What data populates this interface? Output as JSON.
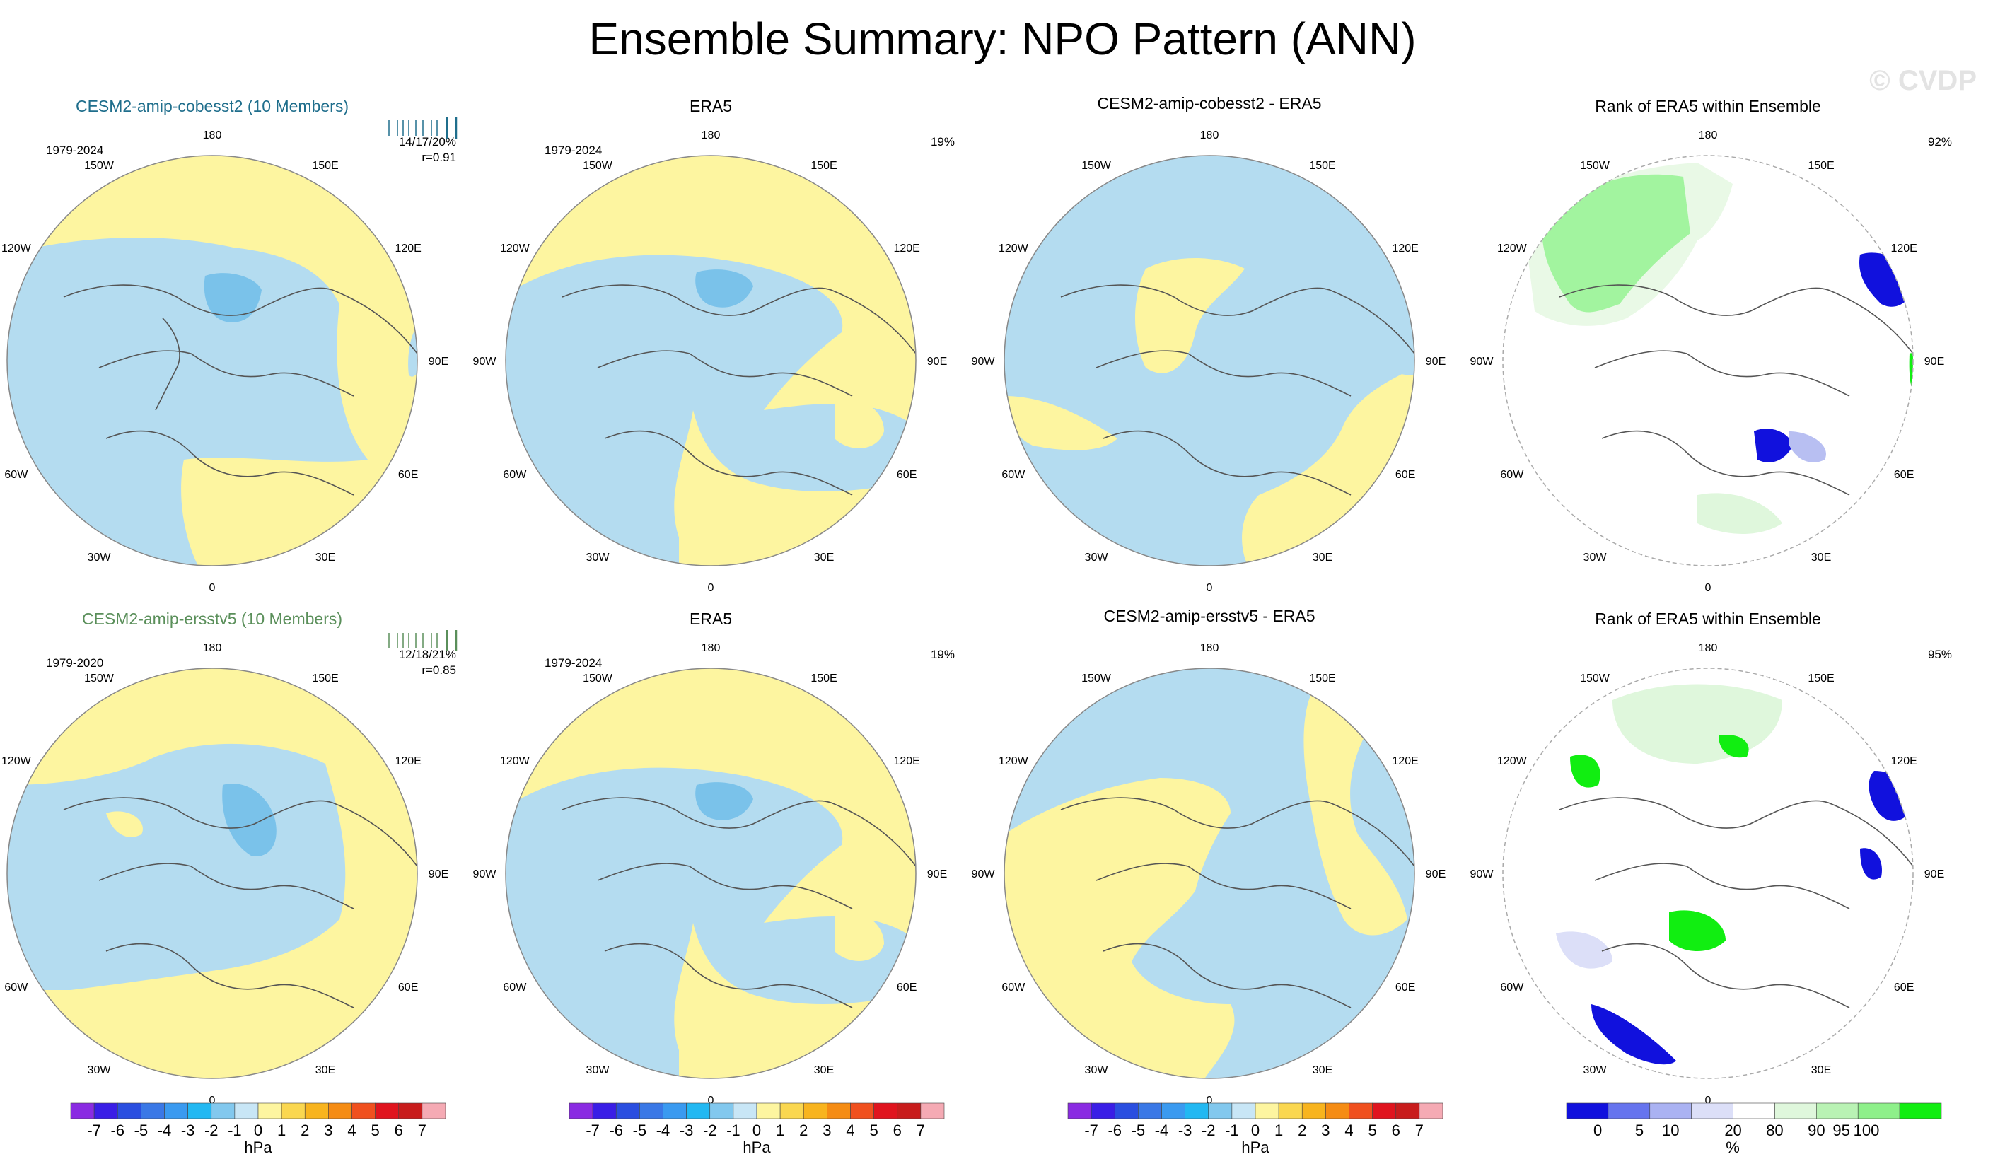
{
  "title": "Ensemble Summary: NPO Pattern (ANN)",
  "watermark": "© CVDP",
  "lon_labels": [
    "180",
    "150E",
    "120E",
    "90E",
    "60E",
    "30E",
    "0",
    "30W",
    "60W",
    "90W",
    "120W",
    "150W"
  ],
  "colors": {
    "positive": "#fdf5a0",
    "negative": "#b4dcf0",
    "strong_negative": "#7ac2ea",
    "coast": "#555555",
    "title_cobe": "#1f6e8c",
    "title_ersst": "#5a8f5a",
    "rank_low": "#1111dd",
    "rank_mid": "#b8bff2",
    "rank_high": "#c8f5c0",
    "rank_top": "#11ee11"
  },
  "rows": [
    {
      "model_title": "CESM2-amip-cobesst2 (10 Members)",
      "model_period": "1979-2024",
      "model_stats": "14/17/20%",
      "model_r": "r=0.91",
      "obs_title": "ERA5",
      "obs_period": "1979-2024",
      "obs_pct": "19%",
      "diff_title": "CESM2-amip-cobesst2 - ERA5",
      "rank_title": "Rank of ERA5 within Ensemble",
      "rank_pct": "92%"
    },
    {
      "model_title": "CESM2-amip-ersstv5 (10 Members)",
      "model_period": "1979-2020",
      "model_stats": "12/18/21%",
      "model_r": "r=0.85",
      "obs_title": "ERA5",
      "obs_period": "1979-2024",
      "obs_pct": "19%",
      "diff_title": "CESM2-amip-ersstv5 - ERA5",
      "rank_title": "Rank of ERA5 within Ensemble",
      "rank_pct": "95%"
    }
  ],
  "colorbar_hpa": {
    "unit": "hPa",
    "labels": [
      "-7",
      "-6",
      "-5",
      "-4",
      "-3",
      "-2",
      "-1",
      "0",
      "1",
      "2",
      "3",
      "4",
      "5",
      "6",
      "7"
    ],
    "colors": [
      "#8a2be2",
      "#3a1ee6",
      "#2a4ee0",
      "#3a78e6",
      "#3a9af0",
      "#22b8f2",
      "#82c8ee",
      "#c8e6f6",
      "#fdf5a0",
      "#fad750",
      "#f8b41e",
      "#f58c14",
      "#f0501e",
      "#e0141e",
      "#c81c1c",
      "#f5aab4"
    ]
  },
  "colorbar_pct": {
    "unit": "%",
    "labels": [
      "0",
      "5",
      "10",
      "20",
      "80",
      "90",
      "95",
      "100"
    ],
    "colors": [
      "#1111dd",
      "#6674ee",
      "#aab2f2",
      "#dcdff8",
      "#ffffff",
      "#dff7dc",
      "#b9f2b4",
      "#8ef08a",
      "#11ee11"
    ]
  },
  "chart_data": [
    {
      "type": "heatmap",
      "title": "CESM2-amip-cobesst2 (10 Members)",
      "period": "1979-2024",
      "stats": "14/17/20%",
      "r": 0.91,
      "projection": "north polar stereographic",
      "units": "hPa"
    },
    {
      "type": "heatmap",
      "title": "ERA5",
      "period": "1979-2024",
      "pct_variance": "19%",
      "units": "hPa"
    },
    {
      "type": "heatmap",
      "title": "CESM2-amip-cobesst2 - ERA5",
      "units": "hPa"
    },
    {
      "type": "heatmap",
      "title": "Rank of ERA5 within Ensemble",
      "pct": "92%",
      "units": "%"
    },
    {
      "type": "heatmap",
      "title": "CESM2-amip-ersstv5 (10 Members)",
      "period": "1979-2020",
      "stats": "12/18/21%",
      "r": 0.85,
      "units": "hPa"
    },
    {
      "type": "heatmap",
      "title": "ERA5",
      "period": "1979-2024",
      "pct_variance": "19%",
      "units": "hPa"
    },
    {
      "type": "heatmap",
      "title": "CESM2-amip-ersstv5 - ERA5",
      "units": "hPa"
    },
    {
      "type": "heatmap",
      "title": "Rank of ERA5 within Ensemble",
      "pct": "95%",
      "units": "%"
    }
  ]
}
